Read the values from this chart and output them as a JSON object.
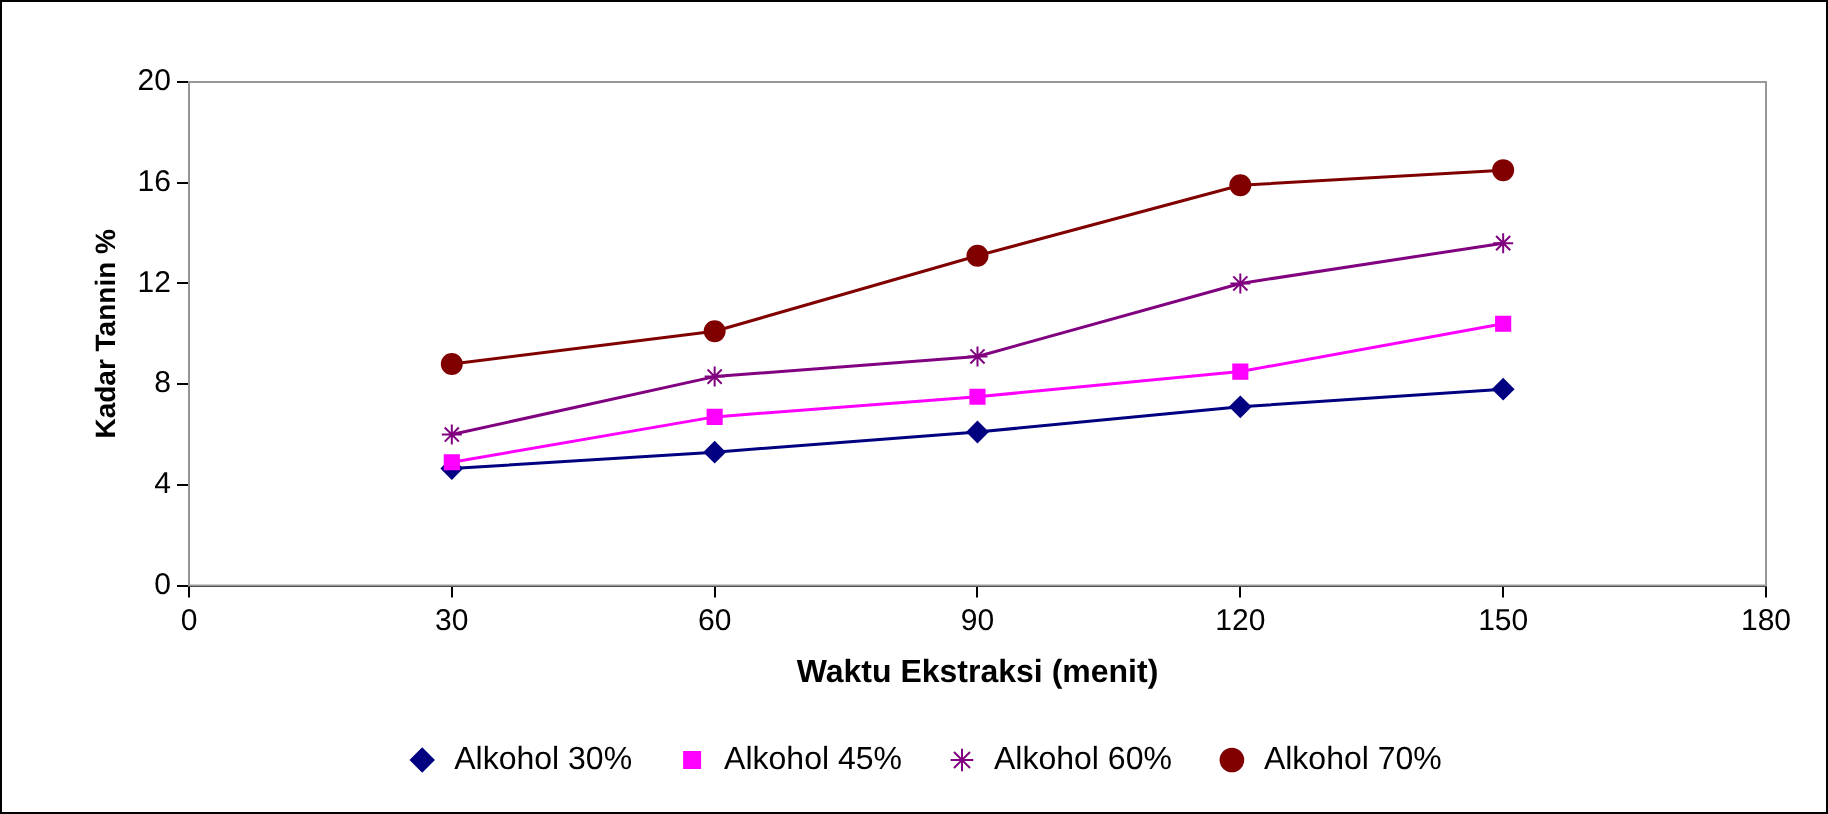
{
  "chart_data": {
    "type": "line",
    "xlabel": "Waktu Ekstraksi (menit)",
    "ylabel": "Kadar Tannin %",
    "x": [
      30,
      60,
      90,
      120,
      150
    ],
    "xlim": [
      0,
      180
    ],
    "xticks": [
      0,
      30,
      60,
      90,
      120,
      150,
      180
    ],
    "ylim": [
      0,
      20
    ],
    "yticks": [
      0,
      4,
      8,
      12,
      16,
      20
    ],
    "grid": false,
    "legend": "bottom",
    "series": [
      {
        "name": "Alkohol 30%",
        "color": "#000080",
        "marker": "diamond",
        "values": [
          4.65,
          5.3,
          6.1,
          7.1,
          7.8
        ]
      },
      {
        "name": "Alkohol 45%",
        "color": "#ff00ff",
        "marker": "square",
        "values": [
          4.9,
          6.7,
          7.5,
          8.5,
          10.4
        ]
      },
      {
        "name": "Alkohol 60%",
        "color": "#800080",
        "marker": "cross",
        "values": [
          6.0,
          8.3,
          9.1,
          12.0,
          13.6
        ]
      },
      {
        "name": "Alkohol 70%",
        "color": "#800000",
        "marker": "circle",
        "values": [
          8.8,
          10.1,
          13.1,
          15.9,
          16.5
        ]
      }
    ]
  }
}
